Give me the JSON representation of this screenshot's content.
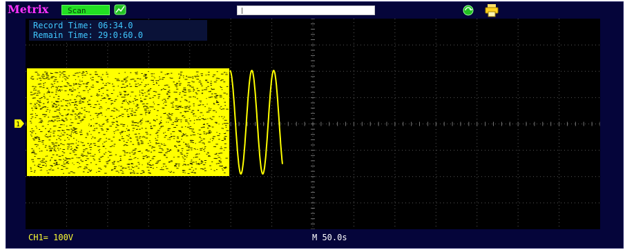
{
  "header": {
    "brand": "Metrix",
    "mode_label": "Scan",
    "icons": [
      "trend-icon",
      "recorder-icon",
      "printer-icon"
    ],
    "colors": {
      "brand": "#ff33ff",
      "mode_bg": "#22e022",
      "frame_bg": "#05053a"
    }
  },
  "record": {
    "record_time_label": "Record Time: 06:34.0",
    "remain_time_label": "Remain Time: 29:0:60.0"
  },
  "channel": {
    "marker": "1",
    "scale_label": "CH1= 100V",
    "trace_color": "#ffff00"
  },
  "timebase": {
    "label": "M 50.0s"
  }
}
